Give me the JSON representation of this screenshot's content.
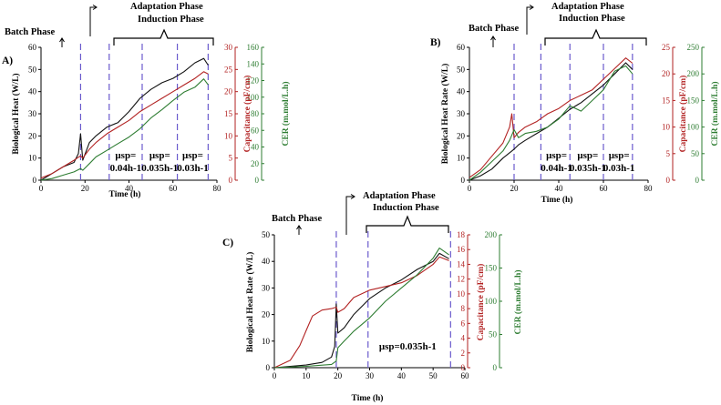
{
  "chart_data": [
    {
      "panel_label": "A)",
      "type": "line",
      "xlabel": "Time (h)",
      "ylabel_left": "Biological Heat (W/L)",
      "ylabel_cap": "Capacitance (pF/cm)",
      "ylabel_cer": "CER (m.mol/L.h)",
      "xlim": [
        0,
        80
      ],
      "xticks": [
        0,
        20,
        40,
        60,
        80
      ],
      "ylim_left": [
        0,
        60
      ],
      "yticks_left": [
        0,
        10,
        20,
        30,
        40,
        50,
        60
      ],
      "ylim_cap": [
        0,
        30
      ],
      "yticks_cap": [
        0,
        5,
        10,
        15,
        20,
        25,
        30
      ],
      "ylim_cer": [
        0,
        160
      ],
      "yticks_cer": [
        0,
        20,
        40,
        60,
        80,
        100,
        120,
        140,
        160
      ],
      "phase_lines": [
        18,
        31,
        46,
        62,
        76
      ],
      "mu_labels": [
        {
          "l1": "μsp=",
          "l2": "0.04h-1",
          "x": 38.5
        },
        {
          "l1": "μsp=",
          "l2": "0.035h-1",
          "x": 54
        },
        {
          "l1": "μsp=",
          "l2": "0.03h-1",
          "x": 69
        }
      ],
      "series": [
        {
          "axis": "left",
          "color": "#111111",
          "x": [
            0,
            5,
            10,
            15,
            17,
            18,
            19,
            22,
            25,
            30,
            35,
            40,
            45,
            50,
            55,
            60,
            65,
            70,
            74,
            76
          ],
          "y": [
            0,
            3,
            6,
            8,
            12,
            21,
            9,
            17,
            20,
            24,
            26,
            31,
            37,
            41,
            44,
            46,
            49,
            53,
            55,
            52
          ]
        },
        {
          "axis": "cap",
          "color": "#b22222",
          "x": [
            0,
            5,
            10,
            15,
            18,
            19,
            22,
            25,
            30,
            35,
            40,
            45,
            50,
            55,
            60,
            65,
            70,
            74,
            76
          ],
          "y": [
            0.5,
            1.5,
            3,
            4.5,
            5.5,
            5,
            7,
            8.5,
            10.5,
            12,
            13.5,
            15.5,
            17,
            18.5,
            20,
            21.5,
            23,
            24.5,
            24
          ]
        },
        {
          "axis": "cer",
          "color": "#2e7d32",
          "x": [
            0,
            5,
            10,
            15,
            18,
            19,
            22,
            25,
            30,
            35,
            40,
            45,
            50,
            55,
            60,
            65,
            70,
            74,
            76
          ],
          "y": [
            0,
            2,
            6,
            10,
            14,
            12,
            20,
            28,
            36,
            44,
            52,
            62,
            75,
            85,
            96,
            106,
            112,
            122,
            115
          ]
        }
      ]
    },
    {
      "panel_label": "B)",
      "type": "line",
      "xlabel": "Time (h)",
      "ylabel_left": "Biological Heat Rate (W/L)",
      "ylabel_cap": "Capacitance (pF/cm)",
      "ylabel_cer": "CER (m.mol/L.h)",
      "xlim": [
        0,
        80
      ],
      "xticks": [
        0,
        20,
        40,
        60,
        80
      ],
      "ylim_left": [
        0,
        60
      ],
      "yticks_left": [
        0,
        10,
        20,
        30,
        40,
        50,
        60
      ],
      "ylim_cap": [
        0,
        25
      ],
      "yticks_cap": [
        0,
        5,
        10,
        15,
        20,
        25
      ],
      "ylim_cer": [
        0,
        250
      ],
      "yticks_cer": [
        0,
        50,
        100,
        150,
        200,
        250
      ],
      "phase_lines": [
        20,
        32,
        45,
        60,
        73
      ],
      "mu_labels": [
        {
          "l1": "μsp=",
          "l2": "0.04h-1",
          "x": 39
        },
        {
          "l1": "μsp=",
          "l2": "0.035h-1",
          "x": 53
        },
        {
          "l1": "μsp=",
          "l2": "0.03h-1",
          "x": 67
        }
      ],
      "series": [
        {
          "axis": "left",
          "color": "#111111",
          "x": [
            0,
            5,
            10,
            15,
            20,
            22,
            25,
            30,
            35,
            40,
            45,
            50,
            55,
            60,
            65,
            70,
            73
          ],
          "y": [
            0,
            2,
            5,
            10,
            14,
            16,
            18,
            21,
            24,
            28,
            32,
            35,
            39,
            43,
            48,
            53,
            50
          ]
        },
        {
          "axis": "cap",
          "color": "#b22222",
          "x": [
            0,
            5,
            10,
            15,
            18,
            19,
            20,
            22,
            25,
            30,
            35,
            40,
            45,
            50,
            55,
            60,
            65,
            70,
            73
          ],
          "y": [
            0.5,
            2,
            4.5,
            7,
            10,
            12.5,
            8,
            9,
            10,
            11,
            12.5,
            13.5,
            15,
            16,
            17,
            19,
            21,
            23,
            22
          ]
        },
        {
          "axis": "cer",
          "color": "#2e7d32",
          "x": [
            0,
            5,
            10,
            15,
            18,
            20,
            22,
            25,
            30,
            35,
            40,
            45,
            50,
            55,
            60,
            65,
            70,
            73
          ],
          "y": [
            0,
            15,
            35,
            55,
            75,
            95,
            80,
            88,
            92,
            100,
            115,
            140,
            130,
            150,
            170,
            205,
            215,
            200
          ]
        }
      ]
    },
    {
      "panel_label": "C)",
      "type": "line",
      "xlabel": "Time (h)",
      "ylabel_left": "Biological Heat Rate (W/L)",
      "ylabel_cap": "Capacitance (pF/cm)",
      "ylabel_cer": "CER (m.mol/L.h)",
      "xlim": [
        0,
        60
      ],
      "xticks": [
        0,
        10,
        20,
        30,
        40,
        50,
        60
      ],
      "ylim_left": [
        0,
        50
      ],
      "yticks_left": [
        0,
        10,
        20,
        30,
        40,
        50
      ],
      "ylim_cap": [
        0,
        18
      ],
      "yticks_cap": [
        0,
        2,
        4,
        6,
        8,
        10,
        12,
        14,
        16,
        18
      ],
      "ylim_cer": [
        0,
        200
      ],
      "yticks_cer": [
        0,
        50,
        100,
        150,
        200
      ],
      "phase_lines": [
        19.5,
        29.5,
        55.5
      ],
      "mu_labels": [
        {
          "l1": "μsp=0.035h-1",
          "l2": "",
          "x": 42
        }
      ],
      "series": [
        {
          "axis": "left",
          "color": "#111111",
          "x": [
            0,
            5,
            10,
            15,
            18,
            19,
            19.5,
            20,
            22,
            25,
            30,
            35,
            40,
            45,
            50,
            52,
            55
          ],
          "y": [
            0,
            0.5,
            1,
            2,
            4,
            8,
            24,
            13,
            15,
            20,
            26,
            30,
            33,
            37,
            40,
            43,
            41
          ]
        },
        {
          "axis": "cap",
          "color": "#b22222",
          "x": [
            0,
            5,
            8,
            10,
            12,
            15,
            18,
            19.5,
            20,
            22,
            25,
            30,
            35,
            40,
            45,
            50,
            52,
            55
          ],
          "y": [
            0,
            1,
            3,
            5,
            7,
            7.8,
            8,
            8.2,
            7.5,
            8,
            9.5,
            10.5,
            11,
            11.5,
            12.5,
            14,
            15,
            14.5
          ]
        },
        {
          "axis": "cer",
          "color": "#2e7d32",
          "x": [
            0,
            10,
            18,
            19.5,
            20,
            22,
            25,
            30,
            35,
            40,
            45,
            50,
            52,
            55
          ],
          "y": [
            0,
            2,
            5,
            10,
            30,
            40,
            55,
            75,
            100,
            120,
            140,
            165,
            180,
            170
          ]
        }
      ]
    }
  ],
  "phase_texts": {
    "batch": "Batch Phase",
    "adaptation": "Adaptation Phase",
    "induction": "Induction Phase"
  }
}
